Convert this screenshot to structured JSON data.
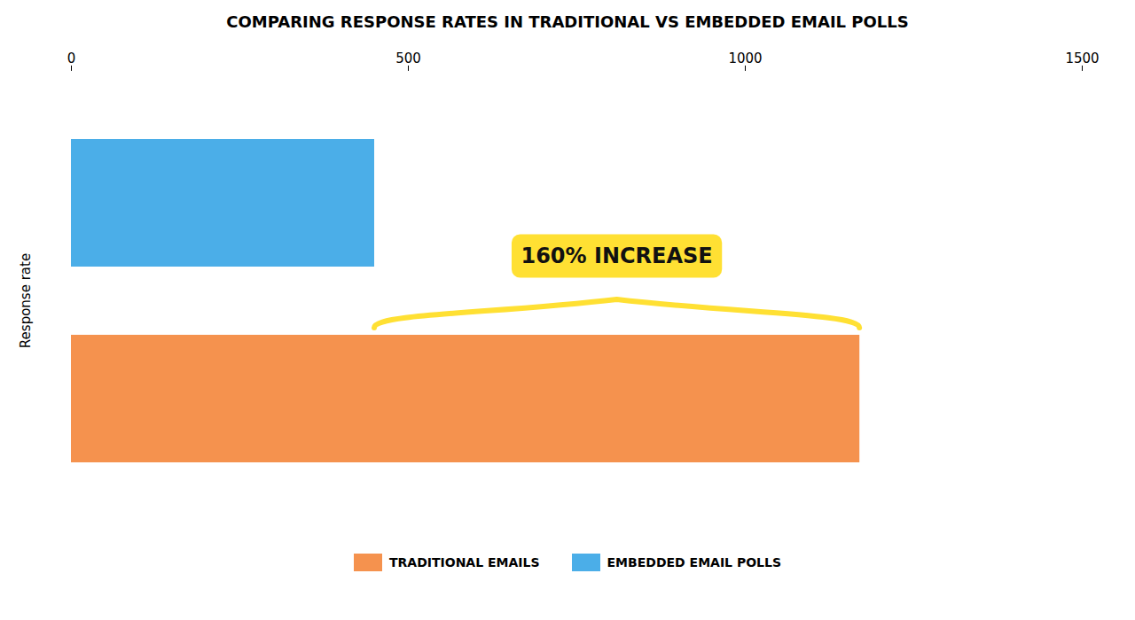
{
  "chart_data": {
    "type": "bar",
    "orientation": "horizontal",
    "title": "COMPARING RESPONSE RATES IN TRADITIONAL VS EMBEDDED EMAIL POLLS",
    "ylabel": "Response rate",
    "categories": [
      "EMBEDDED EMAIL POLLS",
      "TRADITIONAL EMAILS"
    ],
    "values": [
      450,
      1170
    ],
    "colors": [
      "#4BAEE8",
      "#F5924E"
    ],
    "xlim": [
      0,
      1500
    ],
    "xticks": [
      0,
      500,
      1000,
      1500
    ],
    "tick_labels": "x",
    "legend": "bottom",
    "annotation": {
      "text": "160% INCREASE",
      "color": "#FFE033"
    }
  }
}
